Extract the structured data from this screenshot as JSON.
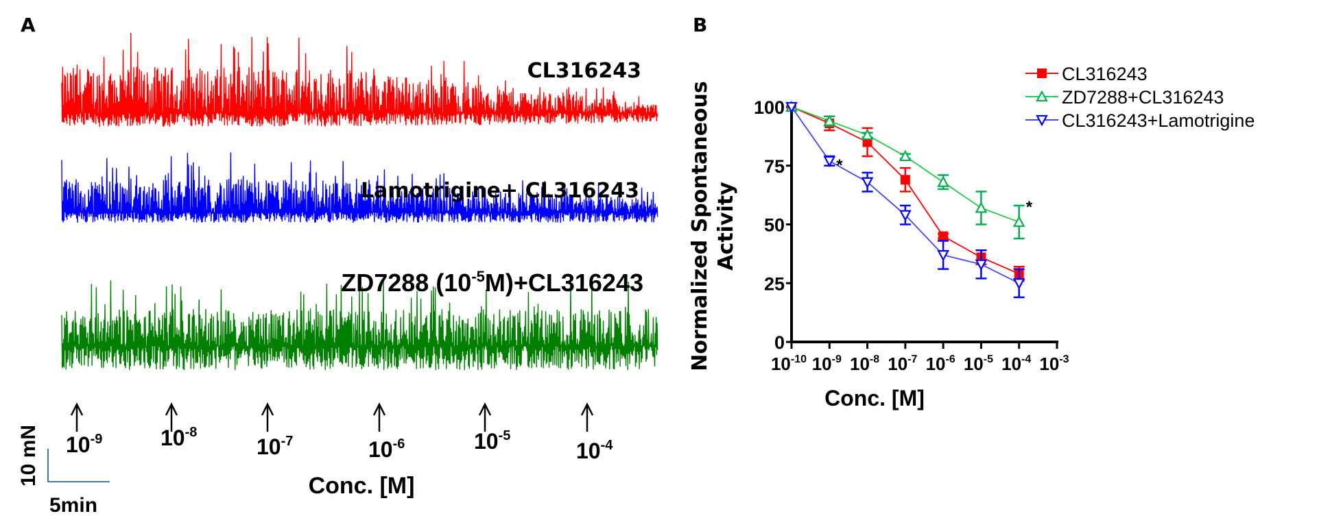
{
  "panel_a": {
    "letter": "A",
    "traces": [
      {
        "name": "CL316243",
        "label": "CL316243",
        "color": "#ff0000",
        "activity_profile": "high then decaying after 10^-6"
      },
      {
        "name": "Lamotrigine+CL316243",
        "label": "Lamotrigine+ CL316243",
        "color": "#0000ff",
        "activity_profile": "moderate, decaying after 10^-7"
      },
      {
        "name": "ZD7288 (10^-5 M)+CL316243",
        "label_prefix": "ZD7288 (10",
        "label_sup": "-5",
        "label_suffix": "M)+CL316243",
        "color": "#007f00",
        "activity_profile": "sustained throughout"
      }
    ],
    "arrows": [
      {
        "base": "10",
        "exp": "-9"
      },
      {
        "base": "10",
        "exp": "-8"
      },
      {
        "base": "10",
        "exp": "-7"
      },
      {
        "base": "10",
        "exp": "-6"
      },
      {
        "base": "10",
        "exp": "-5"
      },
      {
        "base": "10",
        "exp": "-4"
      }
    ],
    "xlabel": "Conc. [M]",
    "scale_bar": {
      "vertical": "10 mN",
      "horizontal": "5min",
      "color": "#4472c4"
    }
  },
  "chart_data": {
    "type": "line",
    "panel": "B",
    "title": "",
    "xlabel": "Conc. [M]",
    "ylabel": "Normalized Spontaneous Activity",
    "ylabel_lines": [
      "Normalized Spontaneous",
      "Activity"
    ],
    "x_scale": "log10",
    "x": [
      -10,
      -9,
      -8,
      -7,
      -6,
      -5,
      -4
    ],
    "xlim": [
      -10,
      -3
    ],
    "x_ticks": [
      -10,
      -9,
      -8,
      -7,
      -6,
      -5,
      -4,
      -3
    ],
    "x_tick_labels": [
      {
        "base": "10",
        "exp": "-10"
      },
      {
        "base": "10",
        "exp": "-9"
      },
      {
        "base": "10",
        "exp": "-8"
      },
      {
        "base": "10",
        "exp": "-7"
      },
      {
        "base": "10",
        "exp": "-6"
      },
      {
        "base": "10",
        "exp": "-5"
      },
      {
        "base": "10",
        "exp": "-4"
      },
      {
        "base": "10",
        "exp": "-3"
      }
    ],
    "ylim": [
      0,
      100
    ],
    "y_ticks": [
      0,
      25,
      50,
      75,
      100
    ],
    "grid": false,
    "legend_position": "top-right",
    "series": [
      {
        "name": "CL316243",
        "color": "#ff0000",
        "marker": "filled-square",
        "values": [
          100,
          93,
          85,
          69,
          45,
          36,
          29
        ],
        "errors": [
          0,
          3,
          6,
          5,
          1,
          3,
          3
        ]
      },
      {
        "name": "ZD7288+CL316243",
        "color": "#00b050",
        "line_color": "#22cc44",
        "marker": "open-triangle-up",
        "values": [
          100,
          94,
          88,
          79,
          68,
          57,
          51
        ],
        "errors": [
          0,
          2,
          1,
          1,
          3,
          7,
          7
        ]
      },
      {
        "name": "CL316243+Lamotrigine",
        "color": "#0000ff",
        "line_color": "#4444ff",
        "marker": "open-triangle-down",
        "values": [
          100,
          77,
          68,
          54,
          37,
          33,
          25
        ],
        "errors": [
          0,
          2,
          4,
          4,
          6,
          6,
          6
        ]
      }
    ],
    "annotations": [
      {
        "text": "*",
        "series": "CL316243+Lamotrigine",
        "x": -9
      },
      {
        "text": "*",
        "series": "ZD7288+CL316243",
        "x": -4
      }
    ]
  }
}
